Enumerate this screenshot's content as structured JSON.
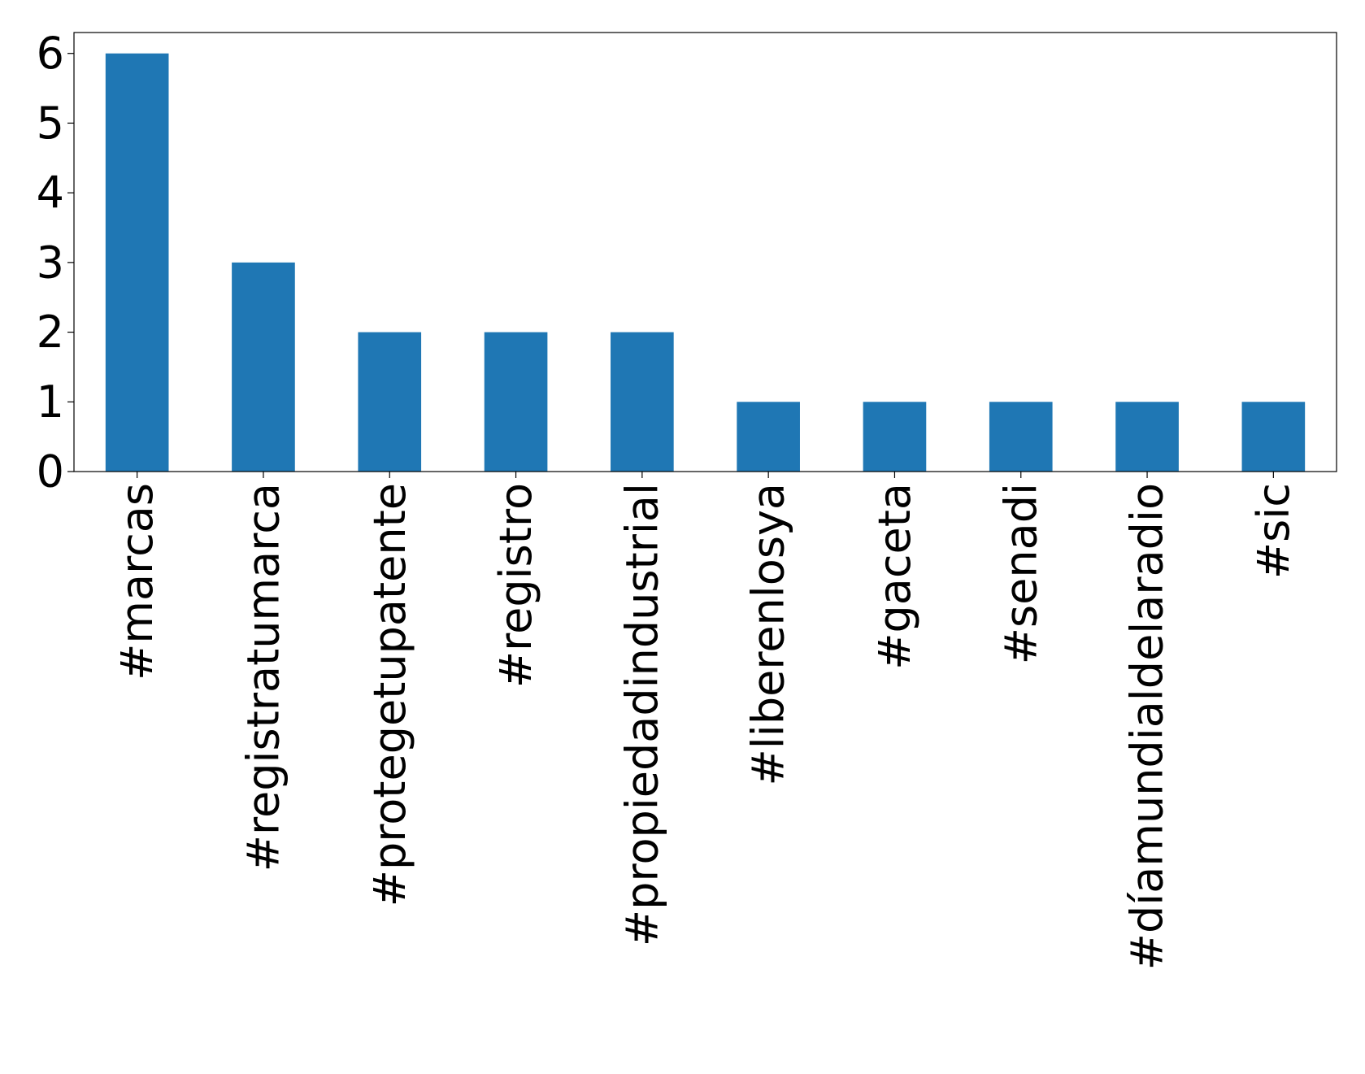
{
  "chart_data": {
    "type": "bar",
    "categories": [
      "#marcas",
      "#registratumarca",
      "#protegetupatente",
      "#registro",
      "#propiedadindustrial",
      "#liberenlosya",
      "#gaceta",
      "#senadi",
      "#díamundialdelaradio",
      "#sic"
    ],
    "values": [
      6,
      3,
      2,
      2,
      2,
      1,
      1,
      1,
      1,
      1
    ],
    "color": "#1f77b4",
    "ylim": [
      0,
      6.3
    ],
    "yticks": [
      0,
      1,
      2,
      3,
      4,
      5,
      6
    ],
    "grid": false
  }
}
